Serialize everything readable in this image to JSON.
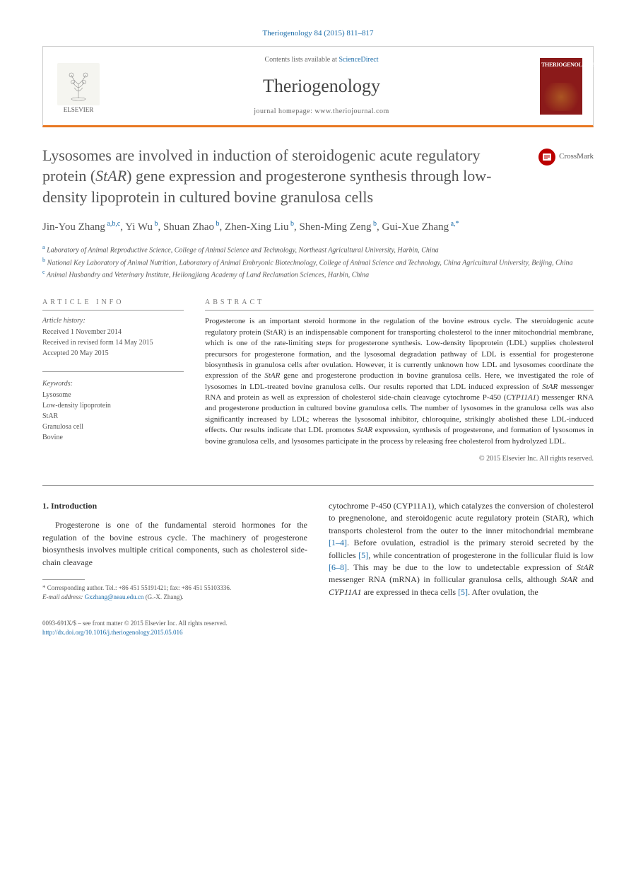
{
  "citation": "Theriogenology 84 (2015) 811–817",
  "header": {
    "contents_prefix": "Contents lists available at ",
    "contents_link": "ScienceDirect",
    "journal_name": "Theriogenology",
    "homepage_prefix": "journal homepage: ",
    "homepage_url": "www.theriojournal.com",
    "publisher_name": "ELSEVIER",
    "cover_title": "THERIOGENOLOGY"
  },
  "crossmark_label": "CrossMark",
  "title_parts": {
    "p1": "Lysosomes are involved in induction of steroidogenic acute regulatory protein (",
    "ital": "StAR",
    "p2": ") gene expression and progesterone synthesis through low-density lipoprotein in cultured bovine granulosa cells"
  },
  "authors": [
    {
      "name": "Jin-You Zhang",
      "sup": "a,b,c"
    },
    {
      "name": "Yi Wu",
      "sup": "b"
    },
    {
      "name": "Shuan Zhao",
      "sup": "b"
    },
    {
      "name": "Zhen-Xing Liu",
      "sup": "b"
    },
    {
      "name": "Shen-Ming Zeng",
      "sup": "b"
    },
    {
      "name": "Gui-Xue Zhang",
      "sup": "a,*"
    }
  ],
  "affiliations": [
    {
      "sup": "a",
      "text": "Laboratory of Animal Reproductive Science, College of Animal Science and Technology, Northeast Agricultural University, Harbin, China"
    },
    {
      "sup": "b",
      "text": "National Key Laboratory of Animal Nutrition, Laboratory of Animal Embryonic Biotechnology, College of Animal Science and Technology, China Agricultural University, Beijing, China"
    },
    {
      "sup": "c",
      "text": "Animal Husbandry and Veterinary Institute, Heilongjiang Academy of Land Reclamation Sciences, Harbin, China"
    }
  ],
  "info": {
    "heading": "ARTICLE INFO",
    "history_label": "Article history:",
    "received": "Received 1 November 2014",
    "revised": "Received in revised form 14 May 2015",
    "accepted": "Accepted 20 May 2015",
    "keywords_label": "Keywords:",
    "keywords": [
      "Lysosome",
      "Low-density lipoprotein",
      "StAR",
      "Granulosa cell",
      "Bovine"
    ]
  },
  "abstract": {
    "heading": "ABSTRACT",
    "text_parts": [
      {
        "t": "Progesterone is an important steroid hormone in the regulation of the bovine estrous cycle. The steroidogenic acute regulatory protein (StAR) is an indispensable component for transporting cholesterol to the inner mitochondrial membrane, which is one of the rate-limiting steps for progesterone synthesis. Low-density lipoprotein (LDL) supplies cholesterol precursors for progesterone formation, and the lysosomal degradation pathway of LDL is essential for progesterone biosynthesis in granulosa cells after ovulation. However, it is currently unknown how LDL and lysosomes coordinate the expression of the "
      },
      {
        "i": "StAR"
      },
      {
        "t": " gene and progesterone production in bovine granulosa cells. Here, we investigated the role of lysosomes in LDL-treated bovine granulosa cells. Our results reported that LDL induced expression of "
      },
      {
        "i": "StAR"
      },
      {
        "t": " messenger RNA and protein as well as expression of cholesterol side-chain cleavage cytochrome P-450 ("
      },
      {
        "i": "CYP11A1"
      },
      {
        "t": ") messenger RNA and progesterone production in cultured bovine granulosa cells. The number of lysosomes in the granulosa cells was also significantly increased by LDL; whereas the lysosomal inhibitor, chloroquine, strikingly abolished these LDL-induced effects. Our results indicate that LDL promotes "
      },
      {
        "i": "StAR"
      },
      {
        "t": " expression, synthesis of progesterone, and formation of lysosomes in bovine granulosa cells, and lysosomes participate in the process by releasing free cholesterol from hydrolyzed LDL."
      }
    ],
    "copyright": "© 2015 Elsevier Inc. All rights reserved."
  },
  "body": {
    "section_heading": "1. Introduction",
    "col1_parts": [
      {
        "t": "Progesterone is one of the fundamental steroid hormones for the regulation of the bovine estrous cycle. The machinery of progesterone biosynthesis involves multiple critical components, such as cholesterol side-chain cleavage "
      }
    ],
    "col2_parts": [
      {
        "t": "cytochrome P-450 (CYP11A1), which catalyzes the conversion of cholesterol to pregnenolone, and steroidogenic acute regulatory protein (StAR), which transports cholesterol from the outer to the inner mitochondrial membrane "
      },
      {
        "a": "[1–4]"
      },
      {
        "t": ". Before ovulation, estradiol is the primary steroid secreted by the follicles "
      },
      {
        "a": "[5]"
      },
      {
        "t": ", while concentration of progesterone in the follicular fluid is low "
      },
      {
        "a": "[6–8]"
      },
      {
        "t": ". This may be due to the low to undetectable expression of "
      },
      {
        "i": "StAR"
      },
      {
        "t": " messenger RNA (mRNA) in follicular granulosa cells, although "
      },
      {
        "i": "StAR"
      },
      {
        "t": " and "
      },
      {
        "i": "CYP11A1"
      },
      {
        "t": " are expressed in theca cells "
      },
      {
        "a": "[5]"
      },
      {
        "t": ". After ovulation, the"
      }
    ]
  },
  "footnote": {
    "corresponding": "* Corresponding author. Tel.: +86 451 55191421; fax: +86 451 55103336.",
    "email_label": "E-mail address: ",
    "email": "Gxzhang@neau.edu.cn",
    "email_suffix": " (G.-X. Zhang)."
  },
  "bottom": {
    "issn_line": "0093-691X/$ – see front matter © 2015 Elsevier Inc. All rights reserved.",
    "doi": "http://dx.doi.org/10.1016/j.theriogenology.2015.05.016"
  },
  "colors": {
    "link": "#1a6ba8",
    "accent_orange": "#e87722",
    "cover_red": "#8b1a1a"
  }
}
